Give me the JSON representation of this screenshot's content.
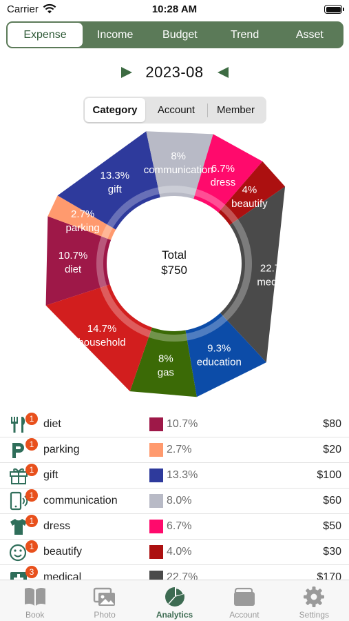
{
  "status_bar": {
    "carrier": "Carrier",
    "time": "10:28 AM"
  },
  "top_tabs": [
    "Expense",
    "Income",
    "Budget",
    "Trend",
    "Asset"
  ],
  "active_top_tab": "Expense",
  "month": "2023-08",
  "view_segments": [
    "Category",
    "Account",
    "Member"
  ],
  "active_view_segment": "Category",
  "chart_data": {
    "type": "pie",
    "variant": "donut",
    "title": "",
    "center_label": "Total",
    "center_value": "$750",
    "categories": [
      "diet",
      "parking",
      "gift",
      "communication",
      "dress",
      "beautify",
      "medical",
      "education",
      "gas",
      "household"
    ],
    "values": [
      10.7,
      2.7,
      13.3,
      8,
      6.7,
      4,
      22.7,
      9.3,
      8,
      14.7
    ],
    "labels": [
      "10.7%",
      "2.7%",
      "13.3%",
      "8%",
      "6.7%",
      "4%",
      "22.7%",
      "9.3%",
      "8%",
      "14.7%"
    ],
    "colors": [
      "#9e1848",
      "#ff9a6e",
      "#2e3a9c",
      "#b8bac6",
      "#ff0a6c",
      "#ac1010",
      "#4a4a4a",
      "#0c4ca8",
      "#3b6a06",
      "#d21e1e"
    ]
  },
  "category_list": [
    {
      "name": "diet",
      "badge": "1",
      "percent": "10.7%",
      "amount": "$80",
      "color": "#9e1848",
      "icon": "fork-knife-icon"
    },
    {
      "name": "parking",
      "badge": "1",
      "percent": "2.7%",
      "amount": "$20",
      "color": "#ff9a6e",
      "icon": "parking-icon"
    },
    {
      "name": "gift",
      "badge": "1",
      "percent": "13.3%",
      "amount": "$100",
      "color": "#2e3a9c",
      "icon": "gift-icon"
    },
    {
      "name": "communication",
      "badge": "1",
      "percent": "8.0%",
      "amount": "$60",
      "color": "#b8bac6",
      "icon": "phone-icon"
    },
    {
      "name": "dress",
      "badge": "1",
      "percent": "6.7%",
      "amount": "$50",
      "color": "#ff0a6c",
      "icon": "shirt-icon"
    },
    {
      "name": "beautify",
      "badge": "1",
      "percent": "4.0%",
      "amount": "$30",
      "color": "#ac1010",
      "icon": "smiley-icon"
    },
    {
      "name": "medical",
      "badge": "3",
      "percent": "22.7%",
      "amount": "$170",
      "color": "#4a4a4a",
      "icon": "medical-kit-icon"
    }
  ],
  "bottom_tabs": [
    {
      "label": "Book",
      "icon": "book-icon"
    },
    {
      "label": "Photo",
      "icon": "photo-icon"
    },
    {
      "label": "Analytics",
      "icon": "pie-chart-icon"
    },
    {
      "label": "Account",
      "icon": "wallet-icon"
    },
    {
      "label": "Settings",
      "icon": "gear-icon"
    }
  ],
  "active_bottom_tab": "Analytics",
  "colors": {
    "brand_green": "#5b7a58",
    "accent_green": "#3d6b42",
    "badge_orange": "#e8501c",
    "icon_green": "#2f6e5a",
    "icon_inactive": "#9a9a9a"
  }
}
